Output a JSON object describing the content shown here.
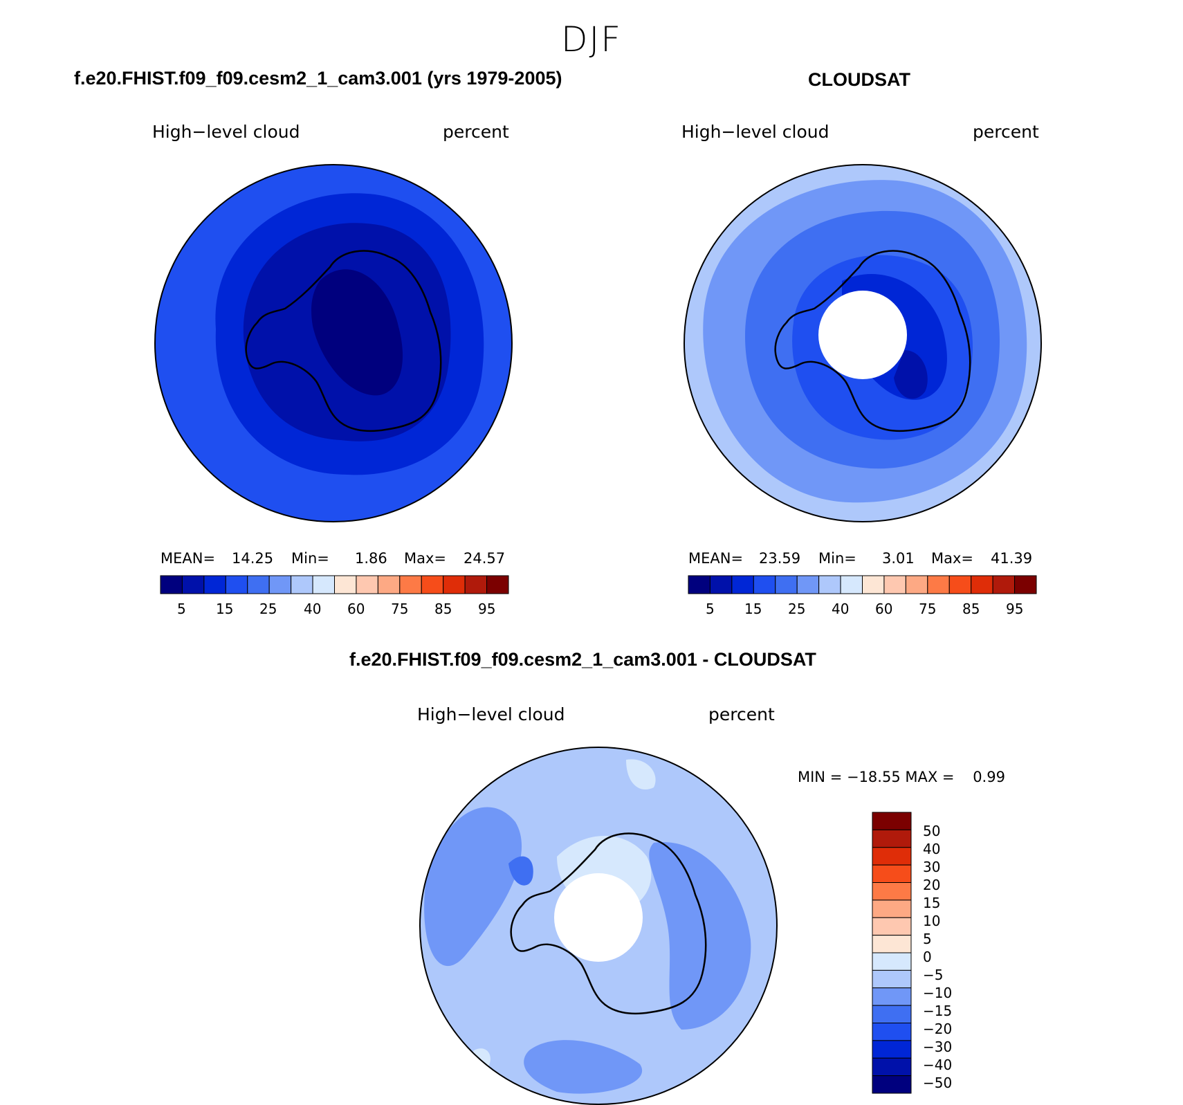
{
  "figure": {
    "season": "DJF"
  },
  "colors": {
    "absolute_scale": [
      "#00007e",
      "#0011aa",
      "#0026d6",
      "#1f4ff0",
      "#3f6ff2",
      "#7097f7",
      "#aec8fb",
      "#d6e8fd",
      "#fde6d5",
      "#fec8b0",
      "#fda984",
      "#fd7a46",
      "#f64d1a",
      "#df2d08",
      "#b01a0b",
      "#7b0000"
    ],
    "diff_scale": [
      "#00007e",
      "#0011aa",
      "#0026d6",
      "#1f4ff0",
      "#3f6ff2",
      "#7097f7",
      "#aec8fb",
      "#d6e8fd",
      "#fde6d5",
      "#fec8b0",
      "#fda984",
      "#fd7a46",
      "#f64d1a",
      "#df2d08",
      "#b01a0b",
      "#7b0000"
    ]
  },
  "panels": {
    "model": {
      "title": "f.e20.FHIST.f09_f09.cesm2_1_cam3.001 (yrs 1979-2005)",
      "variable": "High−level cloud",
      "units": "percent",
      "mean_label": "MEAN=",
      "mean": "14.25",
      "min_label": "Min=",
      "min": "1.86",
      "max_label": "Max=",
      "max": "24.57",
      "ticks": [
        "5",
        "15",
        "25",
        "40",
        "60",
        "75",
        "85",
        "95"
      ]
    },
    "obs": {
      "title": "CLOUDSAT",
      "variable": "High−level cloud",
      "units": "percent",
      "mean_label": "MEAN=",
      "mean": "23.59",
      "min_label": "Min=",
      "min": "3.01",
      "max_label": "Max=",
      "max": "41.39",
      "ticks": [
        "5",
        "15",
        "25",
        "40",
        "60",
        "75",
        "85",
        "95"
      ]
    },
    "diff": {
      "title": "f.e20.FHIST.f09_f09.cesm2_1_cam3.001 - CLOUDSAT",
      "variable": "High−level cloud",
      "units": "percent",
      "min_max": "MIN = −18.55 MAX =    0.99",
      "ticks": [
        "50",
        "40",
        "30",
        "20",
        "15",
        "10",
        "5",
        "0",
        "−5",
        "−10",
        "−15",
        "−20",
        "−30",
        "−40",
        "−50"
      ]
    }
  }
}
